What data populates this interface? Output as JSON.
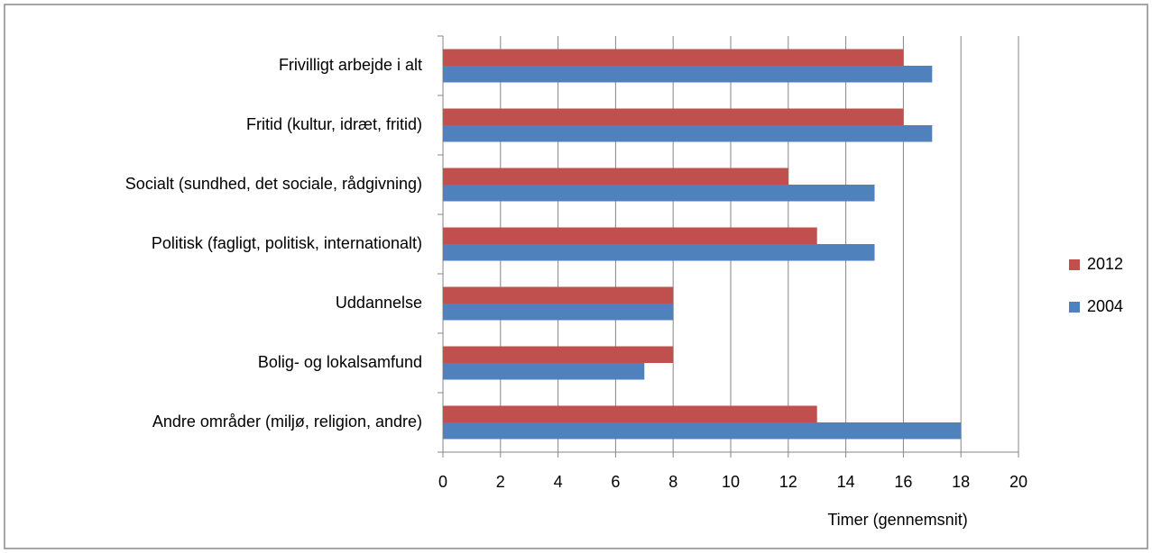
{
  "chart_data": {
    "type": "bar",
    "orientation": "horizontal",
    "categories": [
      "Frivilligt arbejde i alt",
      "Fritid (kultur, idræt, fritid)",
      "Socialt (sundhed, det sociale, rådgivning)",
      "Politisk (fagligt, politisk, internationalt)",
      "Uddannelse",
      "Bolig- og lokalsamfund",
      "Andre områder (miljø, religion, andre)"
    ],
    "series": [
      {
        "name": "2012",
        "color": "#c0504d",
        "values": [
          16,
          16,
          12,
          13,
          8,
          8,
          13
        ]
      },
      {
        "name": "2004",
        "color": "#4f81bd",
        "values": [
          17,
          17,
          15,
          15,
          8,
          7,
          18
        ]
      }
    ],
    "xlabel": "Timer (gennemsnit)",
    "xlim": [
      0,
      20
    ],
    "xticks": [
      0,
      2,
      4,
      6,
      8,
      10,
      12,
      14,
      16,
      18,
      20
    ],
    "grid": true,
    "legend": "right"
  }
}
